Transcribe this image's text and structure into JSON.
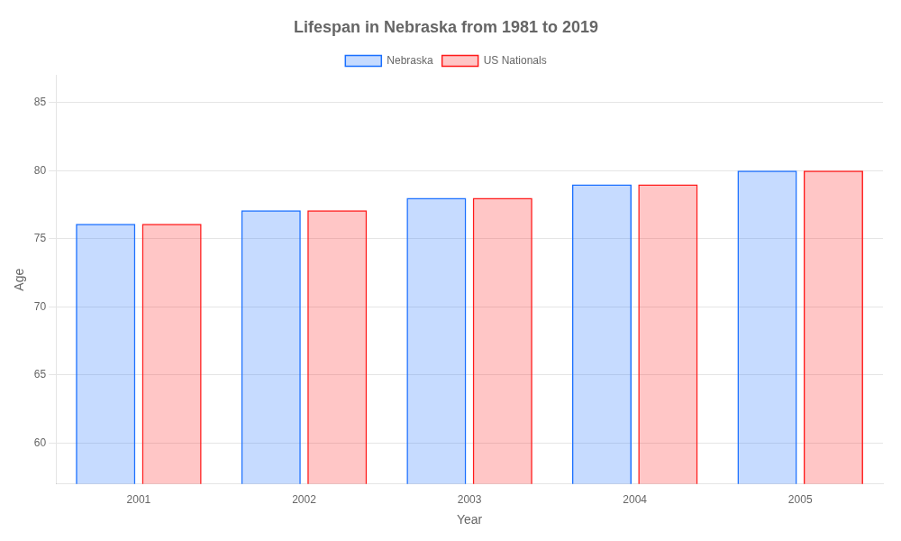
{
  "chart_data": {
    "type": "bar",
    "title": "Lifespan in Nebraska from 1981 to 2019",
    "x_label": "Year",
    "y_label": "Age",
    "categories": [
      "2001",
      "2002",
      "2003",
      "2004",
      "2005"
    ],
    "series": [
      {
        "name": "Nebraska",
        "color": "#1a6fff",
        "values": [
          76.1,
          77.1,
          78.0,
          79.0,
          80.0
        ]
      },
      {
        "name": "US Nationals",
        "color": "#ff1a1a",
        "values": [
          76.1,
          77.1,
          78.0,
          79.0,
          80.0
        ]
      }
    ],
    "ylim": [
      57,
      87
    ],
    "yticks": [
      60,
      65,
      70,
      75,
      80,
      85
    ],
    "grid": true,
    "legend": "upper center"
  }
}
